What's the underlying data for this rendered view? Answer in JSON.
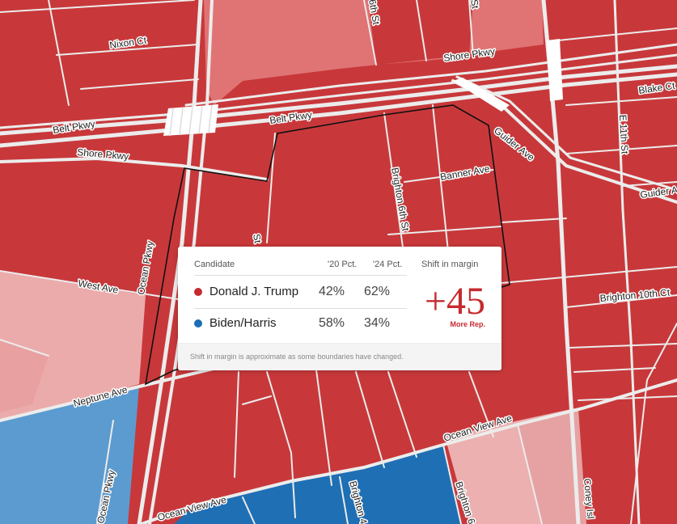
{
  "map": {
    "colors": {
      "strong_rep": "#c8383a",
      "lean_rep": "#e27a7a",
      "light_rep": "#ecaeae",
      "strong_dem": "#1f6fb4",
      "lean_dem": "#5b9bd0",
      "road": "#ececec",
      "outline": "#111111"
    },
    "street_labels": {
      "nixon_ct": "Nixon Ct",
      "sixth_st": "6th St",
      "st_top": "St",
      "shore_pkwy_top": "Shore Pkwy",
      "blake_ct": "Blake Ct",
      "belt_pkwy_left": "Belt Pkwy",
      "belt_pkwy_mid": "Belt Pkwy",
      "shore_pkwy_left": "Shore Pkwy",
      "guider_ave": "Guider Ave",
      "e_11th_st": "E 11th St",
      "banner_ave": "Banner Ave",
      "brighton_6th_st": "Brighton 6th St",
      "guider_right": "Guider A",
      "st_mid": "St",
      "ocean_pkwy": "Ocean Pkwy",
      "west_ave": "West Ave",
      "brighton_10th_ct": "Brighton 10th Ct",
      "neptune_ave": "Neptune Ave",
      "ocean_view_ave_right": "Ocean View Ave",
      "ocean_view_ave_left": "Ocean View Ave",
      "ocean_pkwy_bottom": "Ocean Pkwy",
      "brighton_4": "Brighton 4",
      "brighton_6": "Brighton 6",
      "coney_isl": "Coney Isl"
    }
  },
  "tooltip": {
    "headers": {
      "candidate": "Candidate",
      "pct_2020": "'20 Pct.",
      "pct_2024": "'24 Pct.",
      "shift": "Shift in margin"
    },
    "rows": [
      {
        "name": "Donald J. Trump",
        "pct_2020": "42%",
        "pct_2024": "62%",
        "color": "#c62a2f"
      },
      {
        "name": "Biden/Harris",
        "pct_2020": "58%",
        "pct_2024": "34%",
        "color": "#1a6fb5"
      }
    ],
    "shift_value": "+45",
    "shift_label": "More Rep.",
    "footnote": "Shift in margin is approximate as some boundaries have changed."
  }
}
